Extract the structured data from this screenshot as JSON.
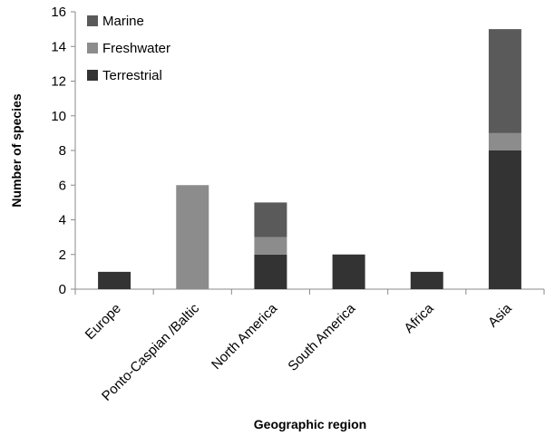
{
  "chart_data": {
    "type": "bar",
    "stacked": true,
    "categories": [
      "Europe",
      "Ponto-Caspian /Baltic",
      "North America",
      "South America",
      "Africa",
      "Asia"
    ],
    "series": [
      {
        "name": "Terrestrial",
        "color": "#333333",
        "values": [
          1,
          0,
          2,
          2,
          1,
          8
        ]
      },
      {
        "name": "Freshwater",
        "color": "#8c8c8c",
        "values": [
          0,
          6,
          1,
          0,
          0,
          1
        ]
      },
      {
        "name": "Marine",
        "color": "#5a5a5a",
        "values": [
          0,
          0,
          2,
          0,
          0,
          6
        ]
      }
    ],
    "legend_order": [
      "Marine",
      "Freshwater",
      "Terrestrial"
    ],
    "legend_position": "top-left",
    "xlabel": "Geographic region",
    "ylabel": "Number of species",
    "ylim": [
      0,
      16
    ],
    "yticks": [
      0,
      2,
      4,
      6,
      8,
      10,
      12,
      14,
      16
    ],
    "grid": false
  }
}
